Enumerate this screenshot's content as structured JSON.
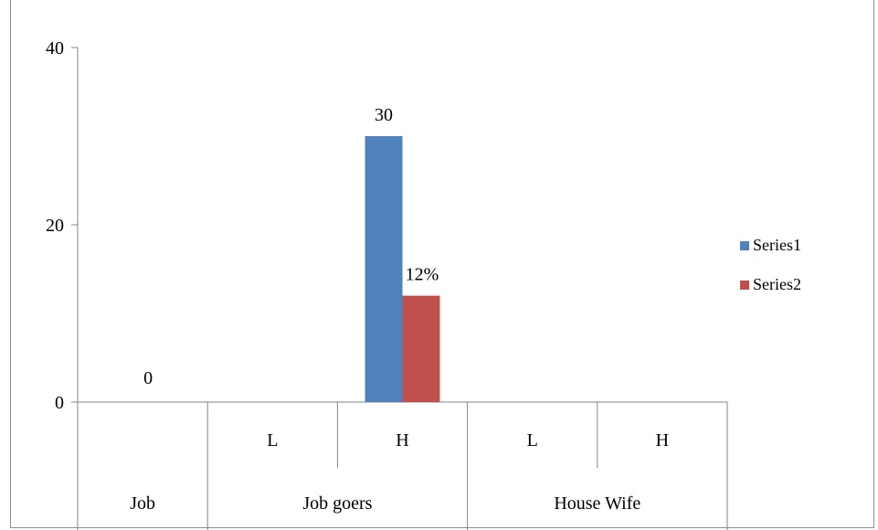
{
  "chart_data": {
    "type": "bar",
    "title": "",
    "xlabel": "",
    "ylabel": "",
    "ylim": [
      0,
      40
    ],
    "yticks": [
      0,
      20,
      40
    ],
    "grid": false,
    "legend_position": "right",
    "category_levels": [
      {
        "label": "Job",
        "sublabels": [
          ""
        ]
      },
      {
        "label": "Job goers",
        "sublabels": [
          "L",
          "H"
        ]
      },
      {
        "label": "House Wife",
        "sublabels": [
          "L",
          "H"
        ]
      }
    ],
    "categories": [
      "Job",
      "Job goers L",
      "Job goers H",
      "House Wife L",
      "House Wife H"
    ],
    "series": [
      {
        "name": "Series1",
        "color": "#4f81bd",
        "values": [
          0,
          null,
          30,
          null,
          null
        ],
        "labels": [
          "0",
          "",
          "30",
          "",
          ""
        ]
      },
      {
        "name": "Series2",
        "color": "#c0504d",
        "values": [
          null,
          null,
          12,
          null,
          null
        ],
        "labels": [
          "",
          "",
          "12%",
          "",
          ""
        ]
      }
    ]
  }
}
